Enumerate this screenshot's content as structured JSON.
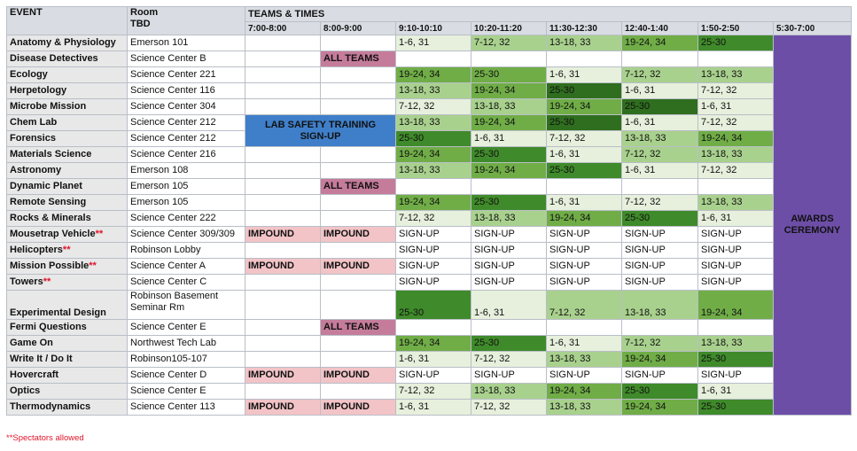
{
  "header": {
    "event": "EVENT",
    "room_line1": "Room",
    "room_line2": "TBD",
    "teams_times": "TEAMS & TIMES",
    "slots": [
      "7:00-8:00",
      "8:00-9:00",
      "9:10-10:10",
      "10:20-11:20",
      "11:30-12:30",
      "12:40-1:40",
      "1:50-2:50",
      "5:30-7:00"
    ]
  },
  "lab_safety": {
    "line1": "LAB SAFETY TRAINING",
    "line2": "SIGN-UP"
  },
  "awards": {
    "line1": "AWARDS",
    "line2": "CEREMONY"
  },
  "all_teams": "ALL TEAMS",
  "impound": "IMPOUND",
  "rows": [
    {
      "event": "Anatomy & Physiology",
      "star": "",
      "room": "Emerson 101",
      "r2": "",
      "slots": [
        "1-6, 31",
        "7-12, 32",
        "13-18, 33",
        "19-24, 34",
        "25-30"
      ]
    },
    {
      "event": "Disease Detectives",
      "star": "",
      "room": "Science Center B",
      "r2": "",
      "slots": [
        "",
        "",
        "",
        "",
        ""
      ]
    },
    {
      "event": "Ecology",
      "star": "",
      "room": "Science Center 221",
      "r2": "",
      "slots": [
        "19-24, 34",
        "25-30",
        "1-6, 31",
        "7-12, 32",
        "13-18, 33"
      ]
    },
    {
      "event": "Herpetology",
      "star": "",
      "room": "Science Center 116",
      "r2": "",
      "slots": [
        "13-18, 33",
        "19-24, 34",
        "25-30",
        "1-6, 31",
        "7-12, 32"
      ]
    },
    {
      "event": "Microbe Mission",
      "star": "",
      "room": "Science Center 304",
      "r2": "",
      "slots": [
        "7-12, 32",
        "13-18, 33",
        "19-24, 34",
        "25-30",
        "1-6, 31"
      ]
    },
    {
      "event": "Chem Lab",
      "star": "",
      "room": "Science Center 212",
      "r2": "",
      "slots": [
        "13-18, 33",
        "19-24, 34",
        "25-30",
        "1-6, 31",
        "7-12, 32"
      ]
    },
    {
      "event": "Forensics",
      "star": "",
      "room": "Science Center 212",
      "r2": "",
      "slots": [
        "25-30",
        "1-6, 31",
        "7-12, 32",
        "13-18, 33",
        "19-24, 34"
      ]
    },
    {
      "event": "Materials Science",
      "star": "",
      "room": "Science Center 216",
      "r2": "",
      "slots": [
        "19-24, 34",
        "25-30",
        "1-6, 31",
        "7-12, 32",
        "13-18, 33"
      ]
    },
    {
      "event": "Astronomy",
      "star": "",
      "room": "Emerson 108",
      "r2": "",
      "slots": [
        "13-18, 33",
        "19-24, 34",
        "25-30",
        "1-6, 31",
        "7-12, 32"
      ]
    },
    {
      "event": "Dynamic Planet",
      "star": "",
      "room": "Emerson 105",
      "r2": "",
      "slots": [
        "",
        "",
        "",
        "",
        ""
      ]
    },
    {
      "event": "Remote Sensing",
      "star": "",
      "room": "Emerson 105",
      "r2": "",
      "slots": [
        "19-24, 34",
        "25-30",
        "1-6, 31",
        "7-12, 32",
        "13-18, 33"
      ]
    },
    {
      "event": "Rocks & Minerals",
      "star": "",
      "room": "Science Center 222",
      "r2": "",
      "slots": [
        "7-12, 32",
        "13-18, 33",
        "19-24, 34",
        "25-30",
        "1-6, 31"
      ]
    },
    {
      "event": "Mousetrap Vehicle",
      "star": "**",
      "room": "Science Center 309/309",
      "r2": "",
      "slots": [
        "SIGN-UP",
        "SIGN-UP",
        "SIGN-UP",
        "SIGN-UP",
        "SIGN-UP"
      ]
    },
    {
      "event": "Helicopters",
      "star": "**",
      "room": "Robinson Lobby",
      "r2": "",
      "slots": [
        "SIGN-UP",
        "SIGN-UP",
        "SIGN-UP",
        "SIGN-UP",
        "SIGN-UP"
      ]
    },
    {
      "event": "Mission Possible",
      "star": "**",
      "room": "Science Center A",
      "r2": "",
      "slots": [
        "SIGN-UP",
        "SIGN-UP",
        "SIGN-UP",
        "SIGN-UP",
        "SIGN-UP"
      ]
    },
    {
      "event": "Towers",
      "star": "**",
      "room": "Science Center C",
      "r2": "",
      "slots": [
        "SIGN-UP",
        "SIGN-UP",
        "SIGN-UP",
        "SIGN-UP",
        "SIGN-UP"
      ]
    },
    {
      "event": "Experimental Design",
      "star": "",
      "room": "Robinson Basement",
      "r2": "Seminar Rm",
      "slots": [
        "25-30",
        "1-6, 31",
        "7-12, 32",
        "13-18, 33",
        "19-24, 34"
      ]
    },
    {
      "event": "Fermi Questions",
      "star": "",
      "room": "Science Center E",
      "r2": "",
      "slots": [
        "",
        "",
        "",
        "",
        ""
      ]
    },
    {
      "event": "Game On",
      "star": "",
      "room": "Northwest Tech Lab",
      "r2": "",
      "slots": [
        "19-24, 34",
        "25-30",
        "1-6, 31",
        "7-12, 32",
        "13-18, 33"
      ]
    },
    {
      "event": "Write It / Do It",
      "star": "",
      "room": "Robinson105-107",
      "r2": "",
      "slots": [
        "1-6, 31",
        "7-12, 32",
        "13-18, 33",
        "19-24, 34",
        "25-30"
      ]
    },
    {
      "event": "Hovercraft",
      "star": "",
      "room": "Science Center D",
      "r2": "",
      "slots": [
        "SIGN-UP",
        "SIGN-UP",
        "SIGN-UP",
        "SIGN-UP",
        "SIGN-UP"
      ]
    },
    {
      "event": "Optics",
      "star": "",
      "room": "Science Center E",
      "r2": "",
      "slots": [
        "7-12, 32",
        "13-18, 33",
        "19-24, 34",
        "25-30",
        "1-6, 31"
      ]
    },
    {
      "event": "Thermodynamics",
      "star": "",
      "room": "Science Center 113",
      "r2": "",
      "slots": [
        "1-6, 31",
        "7-12, 32",
        "13-18, 33",
        "19-24, 34",
        "25-30"
      ]
    }
  ],
  "colors": {
    "g1": "#e6f0dc",
    "g2": "#a9d18e",
    "g3": "#70ad47",
    "g4": "#3f8a2a",
    "g5": "#2f6e1f",
    "impound": "#f2c4c7",
    "all_teams": "#c57c9a",
    "lab_safety": "#3f7fc9",
    "awards": "#6d4ea7",
    "header_text": "#1f4e9b",
    "star": "#e0142a"
  },
  "footnote": "**Spectators allowed"
}
